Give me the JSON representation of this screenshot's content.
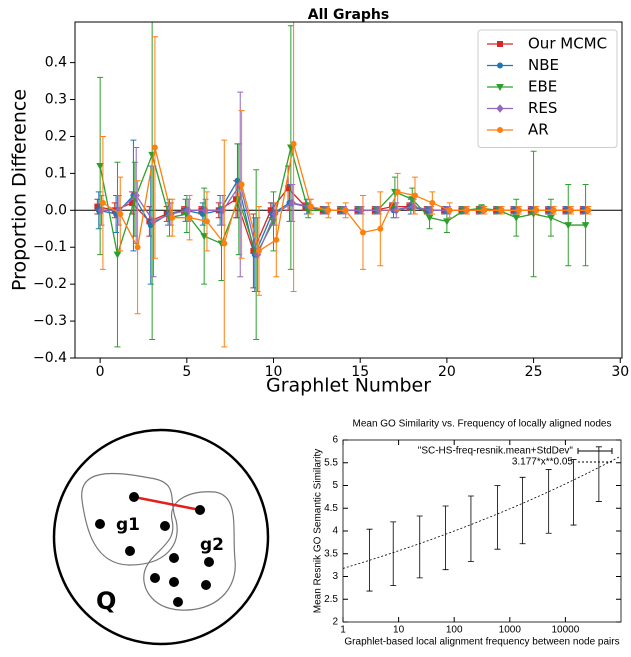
{
  "chart_data": [
    {
      "type": "line",
      "title": "All Graphs",
      "xlabel": "Graphlet Number",
      "ylabel": "Proportion Difference",
      "x": [
        0,
        1,
        2,
        3,
        4,
        5,
        6,
        7,
        8,
        9,
        10,
        11,
        12,
        13,
        14,
        15,
        16,
        17,
        18,
        19,
        20,
        21,
        22,
        23,
        24,
        25,
        26,
        27,
        28
      ],
      "xlim": [
        -1.45,
        30.1
      ],
      "ylim": [
        -0.4,
        0.51
      ],
      "xticks": [
        0,
        5,
        10,
        15,
        20,
        25,
        30
      ],
      "yticks": [
        {
          "value": -0.4,
          "label": "−0.4"
        },
        {
          "value": -0.3,
          "label": "−0.3"
        },
        {
          "value": -0.2,
          "label": "−0.2"
        },
        {
          "value": -0.1,
          "label": "−0.1"
        },
        {
          "value": 0,
          "label": "0.0"
        },
        0.1,
        0.2,
        0.3,
        0.4
      ],
      "hline": 0,
      "legend": "upper right",
      "series": [
        {
          "name": "Our MCMC",
          "color": "#d62728",
          "marker": "square",
          "values": [
            0.01,
            0,
            0.02,
            -0.03,
            -0.01,
            0,
            0,
            0,
            0.03,
            -0.11,
            0,
            0.06,
            0.01,
            0,
            0,
            0,
            0,
            0.01,
            0.01,
            0,
            0,
            0,
            0,
            0,
            0,
            0,
            0,
            0,
            0
          ],
          "errors": [
            0.02,
            0.02,
            0.03,
            0.04,
            0.02,
            0.01,
            0.01,
            0.02,
            0.05,
            0.1,
            0.02,
            0.06,
            0.01,
            0.01,
            0.01,
            0.01,
            0.01,
            0.01,
            0.01,
            0.01,
            0.01,
            0.01,
            0.01,
            0.01,
            0.01,
            0.01,
            0.01,
            0.01,
            0.01
          ]
        },
        {
          "name": "NBE",
          "color": "#1f77b4",
          "marker": "circle",
          "values": [
            0,
            -0.01,
            0.04,
            -0.04,
            -0.01,
            0,
            -0.01,
            0,
            0.08,
            -0.12,
            -0.01,
            0.02,
            0.01,
            0,
            0,
            0,
            0,
            0,
            0.01,
            0,
            0,
            0,
            0,
            0,
            0,
            0,
            0,
            0,
            0
          ],
          "errors": [
            0.05,
            0.05,
            0.15,
            0.16,
            0.03,
            0.03,
            0.03,
            0.04,
            0.1,
            0.1,
            0.03,
            0.05,
            0.02,
            0.01,
            0.01,
            0.01,
            0.01,
            0.02,
            0.02,
            0.01,
            0.01,
            0.01,
            0.01,
            0.01,
            0.01,
            0.01,
            0.01,
            0.01,
            0.01
          ]
        },
        {
          "name": "EBE",
          "color": "#2ca02c",
          "marker": "triangle",
          "values": [
            0.12,
            -0.12,
            0.03,
            0.15,
            -0.02,
            -0.01,
            -0.07,
            -0.09,
            0.03,
            -0.12,
            -0.03,
            0.17,
            0,
            0,
            0,
            0,
            0,
            0.05,
            0.03,
            -0.02,
            -0.03,
            0,
            0.005,
            0,
            -0.02,
            -0.01,
            -0.02,
            -0.04,
            -0.04
          ],
          "errors": [
            0.24,
            0.25,
            0.1,
            0.5,
            0.05,
            0.05,
            0.13,
            0.1,
            0.15,
            0.23,
            0.08,
            0.33,
            0.02,
            0.01,
            0.01,
            0.01,
            0.01,
            0.04,
            0.03,
            0.03,
            0.03,
            0.01,
            0.01,
            0.01,
            0.05,
            0.17,
            0.05,
            0.11,
            0.11
          ]
        },
        {
          "name": "RES",
          "color": "#9467bd",
          "marker": "diamond",
          "values": [
            0,
            0,
            0.04,
            -0.03,
            -0.01,
            0,
            0,
            0,
            0.07,
            -0.12,
            -0.01,
            0.02,
            0.01,
            0,
            0,
            0,
            0,
            0,
            0.01,
            0,
            0,
            0,
            0,
            0,
            0,
            0,
            0,
            0,
            0
          ],
          "errors": [
            0.04,
            0.04,
            0.13,
            0.15,
            0.03,
            0.03,
            0.03,
            0.04,
            0.25,
            0.1,
            0.03,
            0.05,
            0.02,
            0.01,
            0.01,
            0.01,
            0.01,
            0.02,
            0.02,
            0.01,
            0.01,
            0.01,
            0.01,
            0.01,
            0.01,
            0.01,
            0.01,
            0.01,
            0.01
          ]
        },
        {
          "name": "AR",
          "color": "#ff7f0e",
          "marker": "circle",
          "values": [
            0.02,
            -0.01,
            -0.1,
            0.17,
            -0.02,
            -0.02,
            -0.03,
            -0.09,
            0.07,
            -0.11,
            -0.08,
            0.18,
            0.01,
            0,
            0,
            -0.06,
            -0.05,
            0.05,
            0.04,
            0.02,
            0,
            0,
            0,
            0,
            0,
            0,
            0,
            0,
            0
          ],
          "errors": [
            0.18,
            0.1,
            0.18,
            0.3,
            0.05,
            0.06,
            0.08,
            0.28,
            0.2,
            0.12,
            0.1,
            0.4,
            0.02,
            0.02,
            0.02,
            0.1,
            0.1,
            0.05,
            0.05,
            0.03,
            0.02,
            0.01,
            0.01,
            0.01,
            0.01,
            0.01,
            0.01,
            0.01,
            0.01
          ]
        }
      ]
    },
    {
      "type": "errorbar",
      "title": "Mean GO Similarity vs. Frequency of locally aligned nodes",
      "xlabel": "Graphlet-based local alignment frequency between node pairs",
      "ylabel": "Mean Resnik GO Semantic Similarity",
      "xscale": "log",
      "xlim": [
        1,
        100000
      ],
      "ylim": [
        2,
        6
      ],
      "xticks": [
        1,
        10,
        100,
        1000,
        10000
      ],
      "yticks": [
        2,
        2.5,
        3,
        3.5,
        4,
        4.5,
        5,
        5.5,
        6
      ],
      "x": [
        3,
        8,
        24,
        70,
        200,
        600,
        1700,
        5000,
        14000,
        40000
      ],
      "series": [
        {
          "name": "\"SC-HS-freq-resnik.mean+StdDev\"",
          "color": "#000000",
          "values": [
            3.36,
            3.5,
            3.65,
            3.85,
            4.05,
            4.3,
            4.45,
            4.65,
            4.85,
            5.25
          ],
          "errors": [
            0.68,
            0.7,
            0.68,
            0.7,
            0.72,
            0.7,
            0.73,
            0.7,
            0.72,
            0.6
          ]
        }
      ],
      "fit_label": "3.177*x**0.05"
    }
  ],
  "diagram": {
    "labels": [
      "g1",
      "g2",
      "Q"
    ]
  }
}
